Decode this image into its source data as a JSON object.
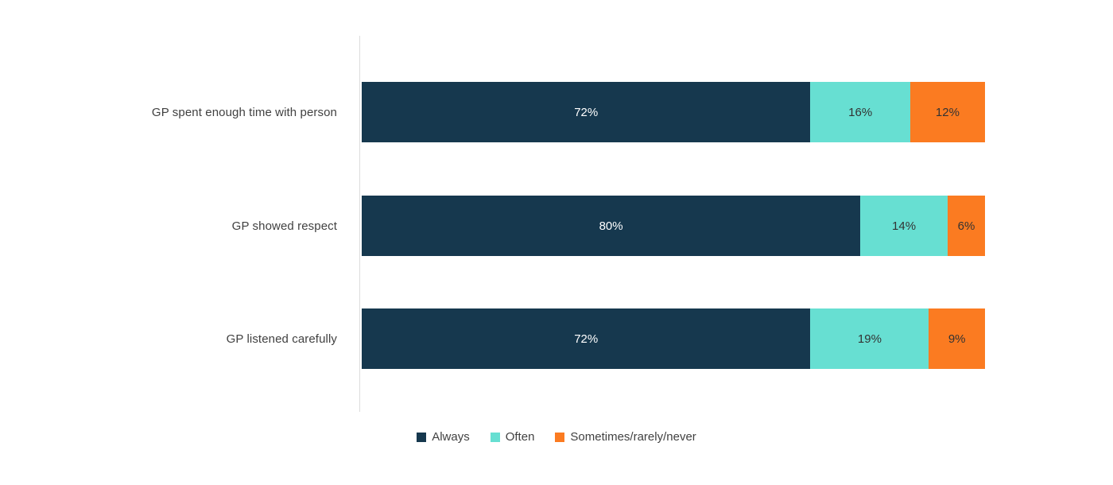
{
  "chart_data": {
    "type": "bar",
    "orientation": "horizontal",
    "stacked": true,
    "title": "",
    "xlabel": "",
    "ylabel": "",
    "xlim": [
      0,
      100
    ],
    "grid": false,
    "legend_position": "bottom",
    "value_label_format": "{v}%",
    "categories": [
      "GP spent enough time with person",
      "GP showed respect",
      "GP listened carefully"
    ],
    "series": [
      {
        "name": "Always",
        "color": "#16384e",
        "value_label_color": "#ffffff",
        "values": [
          72,
          80,
          72
        ]
      },
      {
        "name": "Often",
        "color": "#67dfd2",
        "value_label_color": "#333333",
        "values": [
          16,
          14,
          19
        ]
      },
      {
        "name": "Sometimes/rarely/never",
        "color": "#fb7b21",
        "value_label_color": "#333333",
        "values": [
          12,
          6,
          9
        ]
      }
    ],
    "colors": {
      "axis_line": "#dcdcdc",
      "category_label_text": "#414141",
      "legend_text": "#414141",
      "background": "#ffffff"
    }
  }
}
